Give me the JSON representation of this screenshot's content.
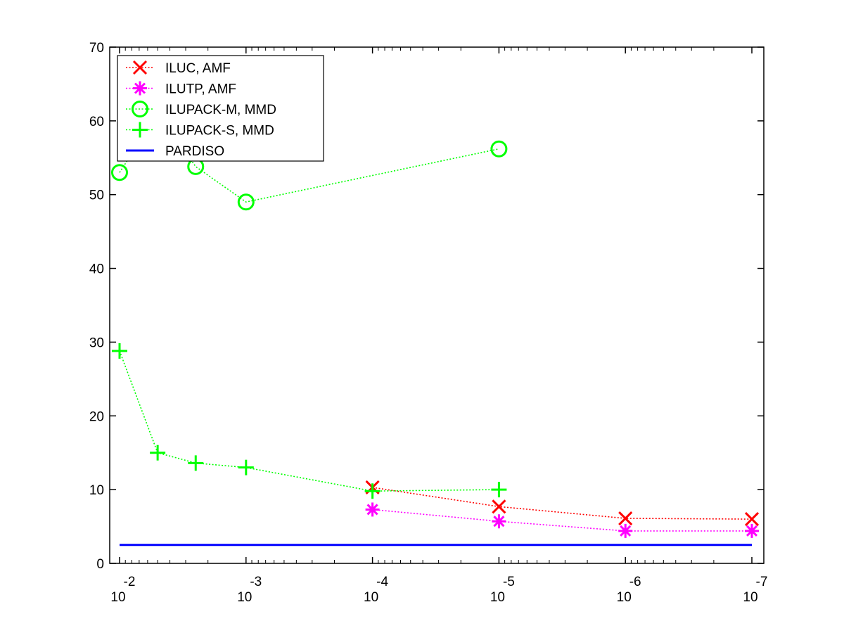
{
  "chart_data": {
    "type": "line",
    "title": "",
    "xlabel": "",
    "ylabel": "",
    "x_scale": "log",
    "x_direction": "decreasing",
    "xlim": [
      0.01,
      1e-07
    ],
    "ylim": [
      0,
      70
    ],
    "x_ticks": [
      {
        "value": 0.01,
        "base": "10",
        "exp": "-2"
      },
      {
        "value": 0.001,
        "base": "10",
        "exp": "-3"
      },
      {
        "value": 0.0001,
        "base": "10",
        "exp": "-4"
      },
      {
        "value": 1e-05,
        "base": "10",
        "exp": "-5"
      },
      {
        "value": 1e-06,
        "base": "10",
        "exp": "-6"
      },
      {
        "value": 1e-07,
        "base": "10",
        "exp": "-7"
      }
    ],
    "y_ticks": [
      "0",
      "10",
      "20",
      "30",
      "40",
      "50",
      "60",
      "70"
    ],
    "grid": false,
    "legend_position": "top-left",
    "series": [
      {
        "name": "ILUC, AMF",
        "color": "#ff0000",
        "marker": "x",
        "line_style": "dotted",
        "x": [
          0.0001,
          1e-05,
          1e-06,
          1e-07
        ],
        "y": [
          10.3,
          7.7,
          6.1,
          6.0
        ]
      },
      {
        "name": "ILUTP, AMF",
        "color": "#ff00ff",
        "marker": "asterisk",
        "line_style": "dotted",
        "x": [
          0.0001,
          1e-05,
          1e-06,
          1e-07
        ],
        "y": [
          7.3,
          5.7,
          4.4,
          4.4
        ]
      },
      {
        "name": "ILUPACK-M, MMD",
        "color": "#00ff00",
        "marker": "circle",
        "line_style": "dotted",
        "x": [
          0.01,
          0.005,
          0.0025,
          0.001,
          1e-05
        ],
        "y": [
          53.0,
          61.0,
          53.8,
          49.0,
          56.2
        ]
      },
      {
        "name": "ILUPACK-S, MMD",
        "color": "#00ff00",
        "marker": "plus",
        "line_style": "dotted",
        "x": [
          0.01,
          0.005,
          0.0025,
          0.001,
          0.0001,
          1e-05
        ],
        "y": [
          28.8,
          15.0,
          13.6,
          13.0,
          9.8,
          10.0
        ]
      },
      {
        "name": "PARDISO",
        "color": "#0000ff",
        "marker": "none",
        "line_style": "solid",
        "x": [
          0.01,
          1e-07
        ],
        "y": [
          2.5,
          2.5
        ]
      }
    ]
  }
}
